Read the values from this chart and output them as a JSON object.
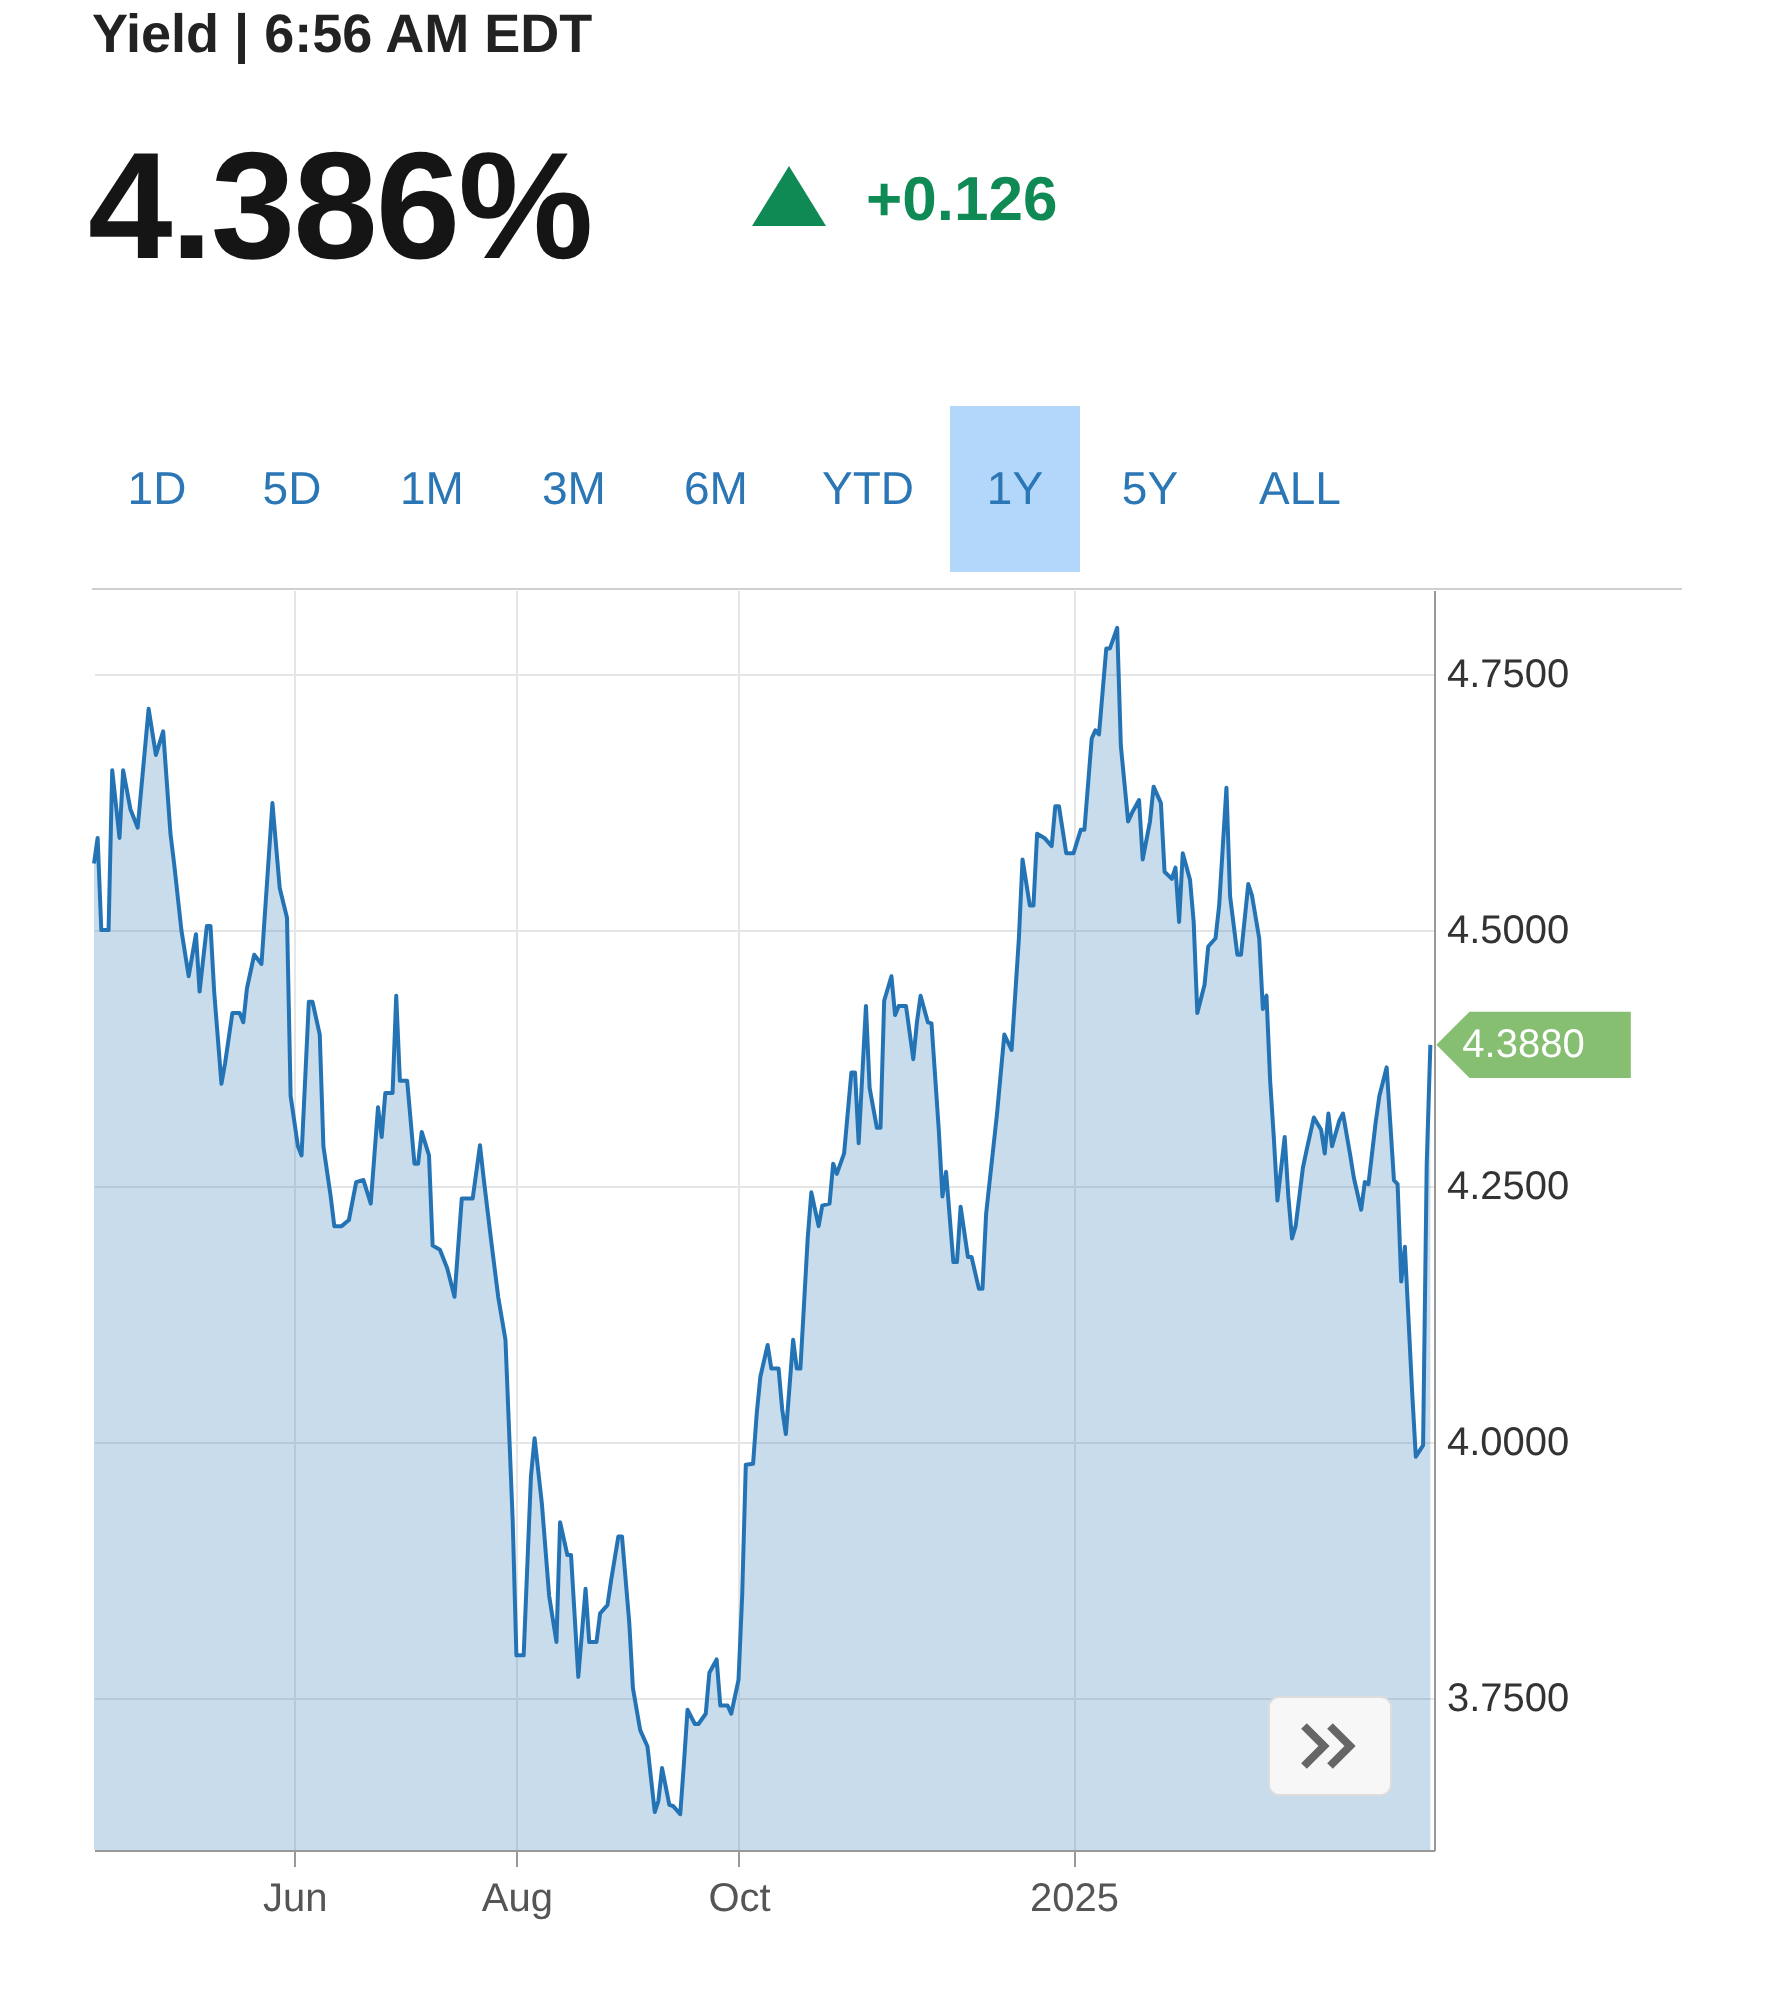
{
  "chart_data": {
    "type": "area",
    "title": "Yield | 6:56 AM EDT",
    "subtitle": "4.386%",
    "annotations": [
      "+0.126",
      "1D",
      "5D",
      "1M",
      "3M",
      "6M",
      "YTD",
      "1Y",
      "5Y",
      "ALL",
      {
        "text": "4.3880",
        "x": "2025-04-09",
        "y": 4.388
      }
    ],
    "x": [
      "2024-04-07",
      "2024-04-08",
      "2024-04-09",
      "2024-04-11",
      "2024-04-12",
      "2024-04-14",
      "2024-04-15",
      "2024-04-17",
      "2024-04-19",
      "2024-04-22",
      "2024-04-24",
      "2024-04-26",
      "2024-04-28",
      "2024-04-29",
      "2024-05-01",
      "2024-05-03",
      "2024-05-05",
      "2024-05-06",
      "2024-05-08",
      "2024-05-09",
      "2024-05-10",
      "2024-05-12",
      "2024-05-13",
      "2024-05-15",
      "2024-05-17",
      "2024-05-18",
      "2024-05-19",
      "2024-05-21",
      "2024-05-23",
      "2024-05-26",
      "2024-05-28",
      "2024-05-30",
      "2024-05-31",
      "2024-06-02",
      "2024-06-03",
      "2024-06-05",
      "2024-06-06",
      "2024-06-08",
      "2024-06-09",
      "2024-06-11",
      "2024-06-12",
      "2024-06-14",
      "2024-06-16",
      "2024-06-18",
      "2024-06-20",
      "2024-06-22",
      "2024-06-24",
      "2024-06-25",
      "2024-06-26",
      "2024-06-28",
      "2024-06-29",
      "2024-06-30",
      "2024-07-02",
      "2024-07-04",
      "2024-07-05",
      "2024-07-06",
      "2024-07-08",
      "2024-07-09",
      "2024-07-11",
      "2024-07-13",
      "2024-07-15",
      "2024-07-17",
      "2024-07-20",
      "2024-07-22",
      "2024-07-23",
      "2024-07-25",
      "2024-07-27",
      "2024-07-29",
      "2024-07-31",
      "2024-08-01",
      "2024-08-03",
      "2024-08-05",
      "2024-08-06",
      "2024-08-08",
      "2024-08-10",
      "2024-08-12",
      "2024-08-13",
      "2024-08-15",
      "2024-08-16",
      "2024-08-18",
      "2024-08-20",
      "2024-08-21",
      "2024-08-23",
      "2024-08-24",
      "2024-08-26",
      "2024-08-27",
      "2024-08-29",
      "2024-08-30",
      "2024-09-01",
      "2024-09-02",
      "2024-09-04",
      "2024-09-06",
      "2024-09-08",
      "2024-09-09",
      "2024-09-10",
      "2024-09-12",
      "2024-09-13",
      "2024-09-15",
      "2024-09-16",
      "2024-09-17",
      "2024-09-19",
      "2024-09-20",
      "2024-09-22",
      "2024-09-23",
      "2024-09-25",
      "2024-09-26",
      "2024-09-28",
      "2024-09-29",
      "2024-10-01",
      "2024-10-02",
      "2024-10-03",
      "2024-10-05",
      "2024-10-06",
      "2024-10-07",
      "2024-10-09",
      "2024-10-10",
      "2024-10-12",
      "2024-10-13",
      "2024-10-14",
      "2024-10-16",
      "2024-10-17",
      "2024-10-18",
      "2024-10-20",
      "2024-10-21",
      "2024-10-23",
      "2024-10-24",
      "2024-10-26",
      "2024-10-27",
      "2024-10-28",
      "2024-10-30",
      "2024-11-01",
      "2024-11-02",
      "2024-11-03",
      "2024-11-05",
      "2024-11-06",
      "2024-11-08",
      "2024-11-09",
      "2024-11-10",
      "2024-11-12",
      "2024-11-13",
      "2024-11-14",
      "2024-11-16",
      "2024-11-18",
      "2024-11-19",
      "2024-11-20",
      "2024-11-22",
      "2024-11-23",
      "2024-11-25",
      "2024-11-26",
      "2024-11-27",
      "2024-11-29",
      "2024-11-30",
      "2024-12-01",
      "2024-12-03",
      "2024-12-04",
      "2024-12-06",
      "2024-12-07",
      "2024-12-08",
      "2024-12-11",
      "2024-12-13",
      "2024-12-15",
      "2024-12-17",
      "2024-12-18",
      "2024-12-20",
      "2024-12-21",
      "2024-12-22",
      "2024-12-24",
      "2024-12-26",
      "2024-12-27",
      "2024-12-28",
      "2024-12-30",
      "2025-01-01",
      "2025-01-03",
      "2025-01-04",
      "2025-01-06",
      "2025-01-07",
      "2025-01-08",
      "2025-01-10",
      "2025-01-11",
      "2025-01-13",
      "2025-01-14",
      "2025-01-16",
      "2025-01-17",
      "2025-01-19",
      "2025-01-20",
      "2025-01-22",
      "2025-01-23",
      "2025-01-25",
      "2025-01-26",
      "2025-01-28",
      "2025-01-29",
      "2025-01-30",
      "2025-01-31",
      "2025-02-02",
      "2025-02-03",
      "2025-02-04",
      "2025-02-06",
      "2025-02-07",
      "2025-02-09",
      "2025-02-10",
      "2025-02-12",
      "2025-02-13",
      "2025-02-15",
      "2025-02-16",
      "2025-02-18",
      "2025-02-19",
      "2025-02-21",
      "2025-02-22",
      "2025-02-23",
      "2025-02-24",
      "2025-02-25",
      "2025-02-26",
      "2025-02-28",
      "2025-03-01",
      "2025-03-02",
      "2025-03-03",
      "2025-03-05",
      "2025-03-06",
      "2025-03-08",
      "2025-03-10",
      "2025-03-11",
      "2025-03-12",
      "2025-03-13",
      "2025-03-15",
      "2025-03-16",
      "2025-03-18",
      "2025-03-19",
      "2025-03-21",
      "2025-03-22",
      "2025-03-23",
      "2025-03-25",
      "2025-03-26",
      "2025-03-28",
      "2025-03-30",
      "2025-03-31",
      "2025-04-01",
      "2025-04-02",
      "2025-04-04",
      "2025-04-05",
      "2025-04-07",
      "2025-04-08",
      "2025-04-09"
    ],
    "series": [
      {
        "color": "#2474b5",
        "values": [
          4.565,
          4.59,
          4.5,
          4.5,
          4.656,
          4.59,
          4.656,
          4.618,
          4.6,
          4.716,
          4.671,
          4.694,
          4.594,
          4.565,
          4.5,
          4.455,
          4.496,
          4.44,
          4.504,
          4.504,
          4.44,
          4.35,
          4.37,
          4.419,
          4.419,
          4.41,
          4.443,
          4.476,
          4.467,
          4.624,
          4.541,
          4.512,
          4.338,
          4.289,
          4.28,
          4.43,
          4.43,
          4.398,
          4.289,
          4.24,
          4.211,
          4.211,
          4.217,
          4.254,
          4.256,
          4.233,
          4.327,
          4.298,
          4.341,
          4.341,
          4.436,
          4.353,
          4.353,
          4.272,
          4.272,
          4.303,
          4.28,
          4.192,
          4.188,
          4.17,
          4.142,
          4.238,
          4.238,
          4.29,
          4.258,
          4.199,
          4.142,
          4.1,
          3.922,
          3.792,
          3.792,
          3.967,
          4.004,
          3.94,
          3.85,
          3.805,
          3.922,
          3.89,
          3.89,
          3.771,
          3.857,
          3.805,
          3.805,
          3.833,
          3.841,
          3.865,
          3.908,
          3.908,
          3.824,
          3.76,
          3.719,
          3.703,
          3.639,
          3.65,
          3.682,
          3.646,
          3.645,
          3.637,
          3.686,
          3.739,
          3.725,
          3.725,
          3.735,
          3.775,
          3.788,
          3.743,
          3.743,
          3.735,
          3.768,
          3.85,
          3.978,
          3.979,
          4.028,
          4.064,
          4.095,
          4.072,
          4.072,
          4.032,
          4.008,
          4.1,
          4.072,
          4.072,
          4.199,
          4.244,
          4.211,
          4.231,
          4.233,
          4.272,
          4.262,
          4.282,
          4.361,
          4.361,
          4.292,
          4.426,
          4.346,
          4.307,
          4.307,
          4.431,
          4.455,
          4.417,
          4.426,
          4.426,
          4.374,
          4.41,
          4.436,
          4.41,
          4.409,
          4.305,
          4.24,
          4.264,
          4.176,
          4.176,
          4.23,
          4.181,
          4.181,
          4.15,
          4.15,
          4.223,
          4.321,
          4.398,
          4.383,
          4.492,
          4.569,
          4.524,
          4.524,
          4.594,
          4.59,
          4.582,
          4.621,
          4.621,
          4.575,
          4.575,
          4.598,
          4.598,
          4.687,
          4.695,
          4.691,
          4.775,
          4.775,
          4.795,
          4.68,
          4.606,
          4.614,
          4.627,
          4.569,
          4.606,
          4.64,
          4.624,
          4.557,
          4.55,
          4.561,
          4.508,
          4.575,
          4.549,
          4.508,
          4.419,
          4.447,
          4.484,
          4.492,
          4.524,
          4.639,
          4.533,
          4.476,
          4.476,
          4.545,
          4.534,
          4.492,
          4.423,
          4.436,
          4.353,
          4.298,
          4.236,
          4.298,
          4.24,
          4.199,
          4.211,
          4.268,
          4.285,
          4.317,
          4.305,
          4.282,
          4.321,
          4.289,
          4.314,
          4.321,
          4.28,
          4.258,
          4.227,
          4.254,
          4.252,
          4.313,
          4.338,
          4.366,
          4.256,
          4.252,
          4.157,
          4.191,
          4.049,
          3.986,
          3.997,
          4.272,
          4.388
        ]
      }
    ],
    "xlim": [
      "2024-04-07",
      "2025-04-10"
    ],
    "xticks": [
      {
        "value": "2024-06-01",
        "label": "Jun"
      },
      {
        "value": "2024-08-01",
        "label": "Aug"
      },
      {
        "value": "2024-10-01",
        "label": "Oct"
      },
      {
        "value": "2025-01-01",
        "label": "2025"
      }
    ],
    "ylim": [
      3.602,
      4.832
    ],
    "yticks": [
      {
        "value": 3.75,
        "label": "3.7500"
      },
      {
        "value": 4.0,
        "label": "4.0000"
      },
      {
        "value": 4.25,
        "label": "4.2500"
      },
      {
        "value": 4.5,
        "label": "4.5000"
      },
      {
        "value": 4.75,
        "label": "4.7500"
      }
    ],
    "grid": true
  }
}
